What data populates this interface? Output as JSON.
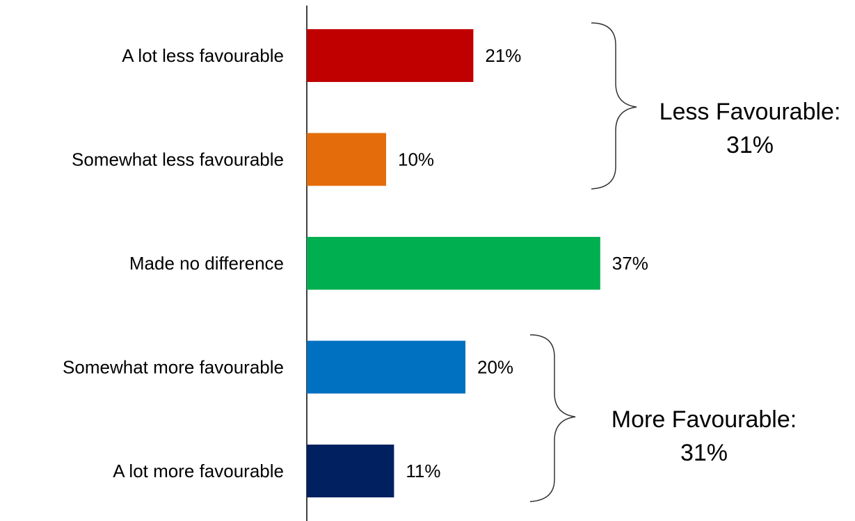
{
  "chart_data": {
    "type": "bar",
    "orientation": "horizontal",
    "categories": [
      "A lot less favourable",
      "Somewhat less favourable",
      "Made no difference",
      "Somewhat more favourable",
      "A lot more favourable"
    ],
    "values": [
      21,
      10,
      37,
      20,
      11
    ],
    "value_labels": [
      "21%",
      "10%",
      "37%",
      "20%",
      "11%"
    ],
    "colors": [
      "#c00000",
      "#e46c0a",
      "#00b050",
      "#0070c0",
      "#002060"
    ],
    "xlim": [
      0,
      40
    ],
    "grid": false,
    "annotations": [
      {
        "text_line1": "Less Favourable:",
        "text_line2": "31%",
        "brackets_categories": [
          "A lot less favourable",
          "Somewhat less favourable"
        ]
      },
      {
        "text_line1": "More Favourable:",
        "text_line2": "31%",
        "brackets_categories": [
          "Somewhat more favourable",
          "A lot more favourable"
        ]
      }
    ]
  }
}
